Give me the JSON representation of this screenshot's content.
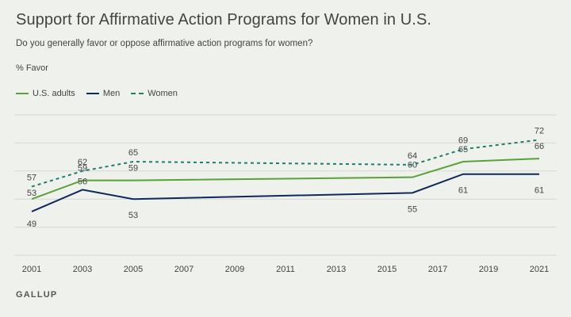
{
  "header": {
    "title": "Support for Affirmative Action Programs for Women in U.S.",
    "subtitle": "Do you generally favor or oppose affirmative action programs for women?",
    "ylabel": "% Favor",
    "brand": "GALLUP"
  },
  "colors": {
    "us_adults": "#5aa13a",
    "men": "#0f2a5a",
    "women": "#1f7f6e",
    "grid": "#d6d9d2"
  },
  "chart_data": {
    "type": "line",
    "title": "Support for Affirmative Action Programs for Women in U.S.",
    "ylabel": "% Favor",
    "xlim": [
      2001,
      2021
    ],
    "ylim": [
      35,
      80
    ],
    "grid": true,
    "legend_position": "top-left",
    "x_ticks": [
      "2001",
      "2003",
      "2005",
      "2007",
      "2009",
      "2011",
      "2013",
      "2015",
      "2017",
      "2019",
      "2021"
    ],
    "series": [
      {
        "name": "U.S. adults",
        "style": "solid",
        "x": [
          2001,
          2003,
          2005,
          2016,
          2018,
          2021
        ],
        "values": [
          53,
          59,
          59,
          60,
          65,
          66
        ],
        "labels": [
          "53",
          "59",
          "59",
          "60",
          "65",
          "66"
        ]
      },
      {
        "name": "Men",
        "style": "solid",
        "x": [
          2001,
          2003,
          2005,
          2016,
          2018,
          2021
        ],
        "values": [
          49,
          56,
          53,
          55,
          61,
          61
        ],
        "labels": [
          "49",
          "56",
          "53",
          "55",
          "61",
          "61"
        ]
      },
      {
        "name": "Women",
        "style": "dashed",
        "x": [
          2001,
          2003,
          2005,
          2016,
          2018,
          2021
        ],
        "values": [
          57,
          62,
          65,
          64,
          69,
          72
        ],
        "labels": [
          "57",
          "62",
          "65",
          "64",
          "69",
          "72"
        ]
      }
    ]
  }
}
